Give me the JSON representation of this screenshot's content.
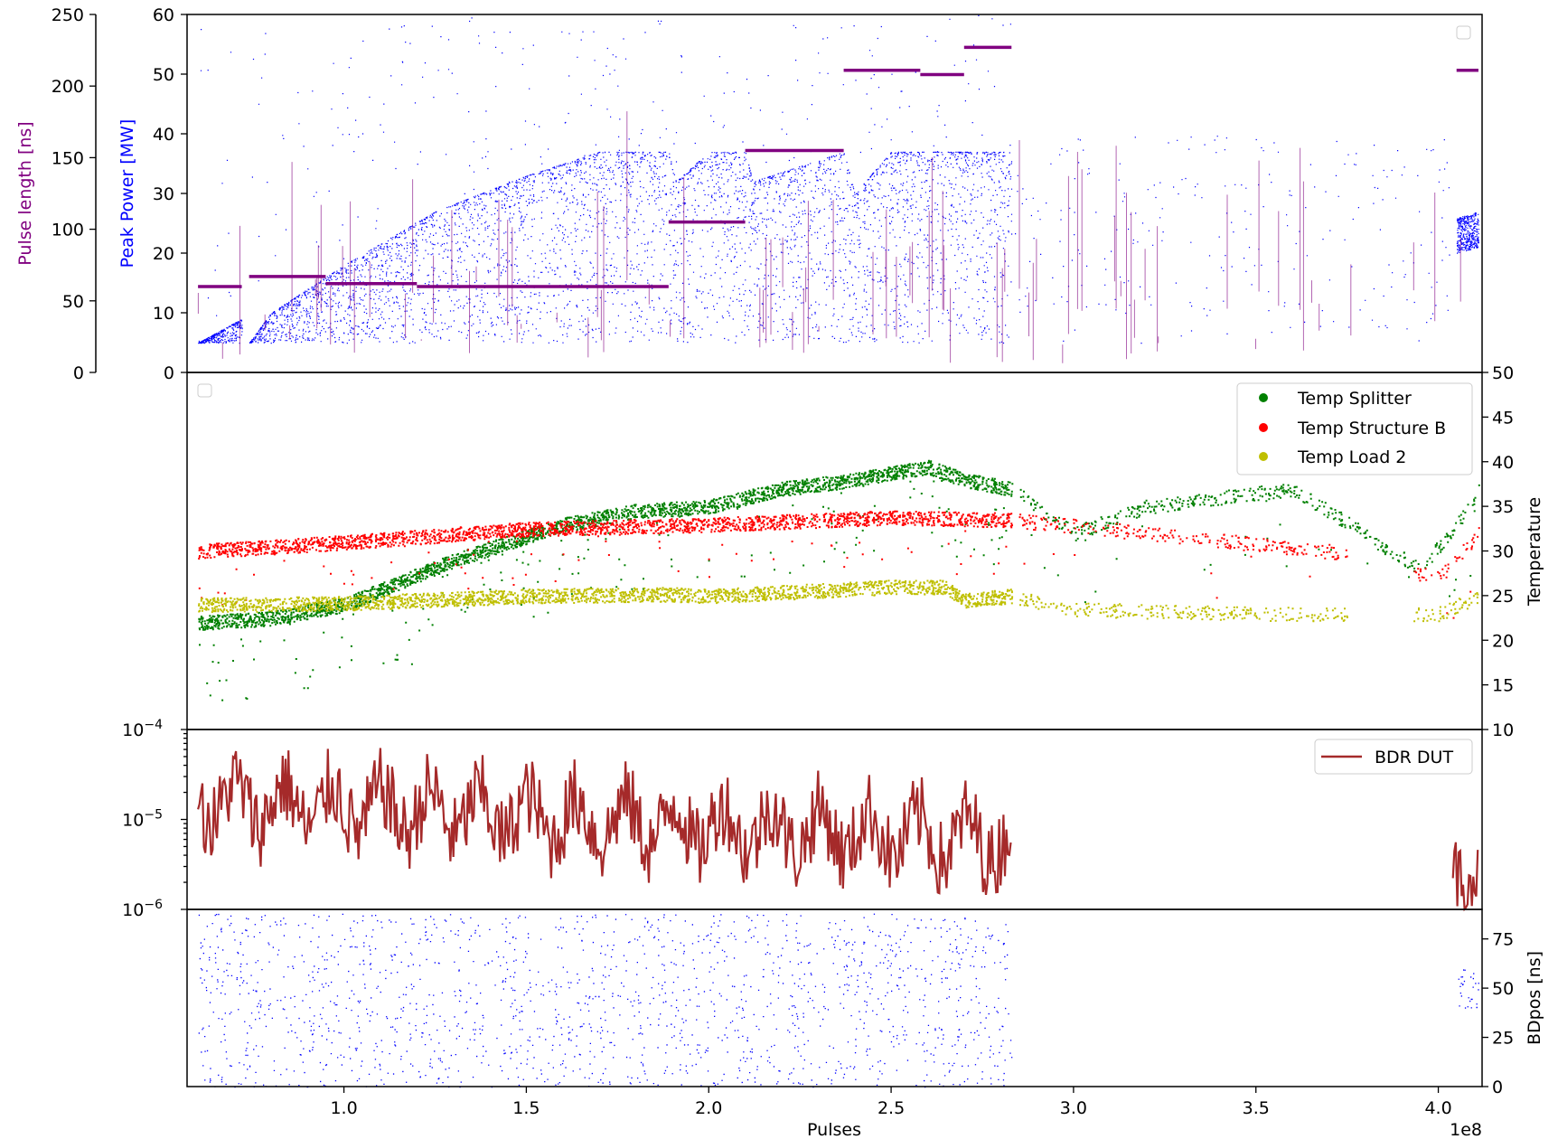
{
  "chart_data": [
    {
      "type": "scatter",
      "panel": "power-pulse",
      "ylabel_left_outer": "Pulse length [ns]",
      "ylabel_left_inner": "Peak Power [MW]",
      "yticks_outer": [
        "0",
        "50",
        "100",
        "150",
        "200",
        "250"
      ],
      "yticks_inner": [
        "0",
        "10",
        "20",
        "30",
        "40",
        "50",
        "60"
      ],
      "ylim_pulse_length": [
        0,
        250
      ],
      "ylim_peak_power": [
        0,
        60
      ],
      "series": [
        {
          "key": "pulse_length",
          "color": "#800080",
          "axis": "outer",
          "segments": [
            {
              "x0": 0.6,
              "x1": 0.72,
              "y": 60
            },
            {
              "x0": 0.74,
              "x1": 0.95,
              "y": 67
            },
            {
              "x0": 0.95,
              "x1": 1.2,
              "y": 62
            },
            {
              "x0": 1.2,
              "x1": 1.89,
              "y": 60
            },
            {
              "x0": 1.89,
              "x1": 2.1,
              "y": 105
            },
            {
              "x0": 2.1,
              "x1": 2.37,
              "y": 155
            },
            {
              "x0": 2.37,
              "x1": 2.58,
              "y": 211
            },
            {
              "x0": 2.58,
              "x1": 2.7,
              "y": 208
            },
            {
              "x0": 2.7,
              "x1": 2.83,
              "y": 227
            },
            {
              "x0": 4.05,
              "x1": 4.11,
              "y": 211
            }
          ]
        },
        {
          "key": "peak_power",
          "color": "#0000ff",
          "axis": "inner",
          "trend": [
            [
              0.6,
              5
            ],
            [
              0.72,
              9
            ],
            [
              0.74,
              5
            ],
            [
              0.8,
              10
            ],
            [
              1.0,
              18
            ],
            [
              1.25,
              27
            ],
            [
              1.5,
              33
            ],
            [
              1.7,
              37
            ],
            [
              1.89,
              37
            ],
            [
              1.91,
              32
            ],
            [
              2.0,
              37
            ],
            [
              2.1,
              37
            ],
            [
              2.12,
              32
            ],
            [
              2.37,
              37
            ],
            [
              2.4,
              30
            ],
            [
              2.5,
              37
            ],
            [
              2.83,
              37
            ],
            [
              4.05,
              23
            ],
            [
              4.11,
              24
            ]
          ]
        }
      ]
    },
    {
      "type": "scatter",
      "panel": "temperature",
      "ylabel": "Temperature",
      "yticks": [
        "10",
        "15",
        "20",
        "25",
        "30",
        "35",
        "40",
        "45",
        "50"
      ],
      "ylim": [
        10,
        50
      ],
      "legend": [
        "Temp Splitter",
        "Temp Structure B",
        "Temp Load 2"
      ],
      "series": [
        {
          "name": "Temp Splitter",
          "color": "#008000",
          "trend": [
            [
              0.6,
              22
            ],
            [
              0.8,
              22.5
            ],
            [
              1.0,
              24
            ],
            [
              1.3,
              29
            ],
            [
              1.6,
              33
            ],
            [
              1.8,
              34.5
            ],
            [
              2.0,
              35
            ],
            [
              2.2,
              37
            ],
            [
              2.4,
              38
            ],
            [
              2.6,
              39.5
            ],
            [
              2.7,
              38
            ],
            [
              2.83,
              37
            ],
            [
              3.0,
              32
            ],
            [
              3.2,
              35
            ],
            [
              3.4,
              36
            ],
            [
              3.6,
              37
            ],
            [
              3.95,
              28
            ],
            [
              4.05,
              33
            ],
            [
              4.11,
              37
            ]
          ]
        },
        {
          "name": "Temp Structure B",
          "color": "#ff0000",
          "trend": [
            [
              0.6,
              30
            ],
            [
              1.0,
              31
            ],
            [
              1.5,
              32.5
            ],
            [
              2.0,
              33
            ],
            [
              2.5,
              33.8
            ],
            [
              2.83,
              33.5
            ],
            [
              3.7,
              30
            ],
            [
              4.0,
              27
            ],
            [
              4.11,
              32
            ]
          ]
        },
        {
          "name": "Temp Load 2",
          "color": "#bfbf00",
          "trend": [
            [
              0.6,
              24
            ],
            [
              1.0,
              24.2
            ],
            [
              1.5,
              25
            ],
            [
              1.9,
              25.2
            ],
            [
              2.0,
              25
            ],
            [
              2.3,
              25.6
            ],
            [
              2.5,
              26
            ],
            [
              2.65,
              26
            ],
            [
              2.7,
              24.5
            ],
            [
              2.83,
              25
            ],
            [
              3.0,
              23.5
            ],
            [
              3.5,
              23
            ],
            [
              4.0,
              23
            ],
            [
              4.11,
              25
            ]
          ]
        }
      ]
    },
    {
      "type": "line",
      "panel": "bdr",
      "yscale": "log",
      "ylim": [
        1e-06,
        0.0001
      ],
      "yticks": [
        {
          "base": "10",
          "exp": "−4"
        },
        {
          "base": "10",
          "exp": "−5"
        },
        {
          "base": "10",
          "exp": "−6"
        }
      ],
      "legend": [
        "BDR DUT"
      ],
      "series": [
        {
          "name": "BDR DUT",
          "color": "#a52a2a",
          "x_range": [
            0.6,
            2.83
          ],
          "x_range_2": [
            4.04,
            4.11
          ],
          "typical_range": [
            3e-06,
            5e-05
          ]
        }
      ]
    },
    {
      "type": "scatter",
      "panel": "bdpos",
      "ylabel": "BDpos [ns]",
      "yticks": [
        "0",
        "25",
        "50",
        "75"
      ],
      "ylim": [
        0,
        90
      ],
      "xlabel": "Pulses",
      "xticks": [
        "1.0",
        "1.5",
        "2.0",
        "2.5",
        "3.0",
        "3.5",
        "4.0"
      ],
      "x_offset_label": "1e8",
      "xlim": [
        0.57,
        4.12
      ],
      "series": [
        {
          "key": "bdpos",
          "color": "#0000ff",
          "x_range": [
            0.6,
            2.83
          ],
          "x_range_2": [
            4.05,
            4.11
          ]
        }
      ]
    }
  ]
}
